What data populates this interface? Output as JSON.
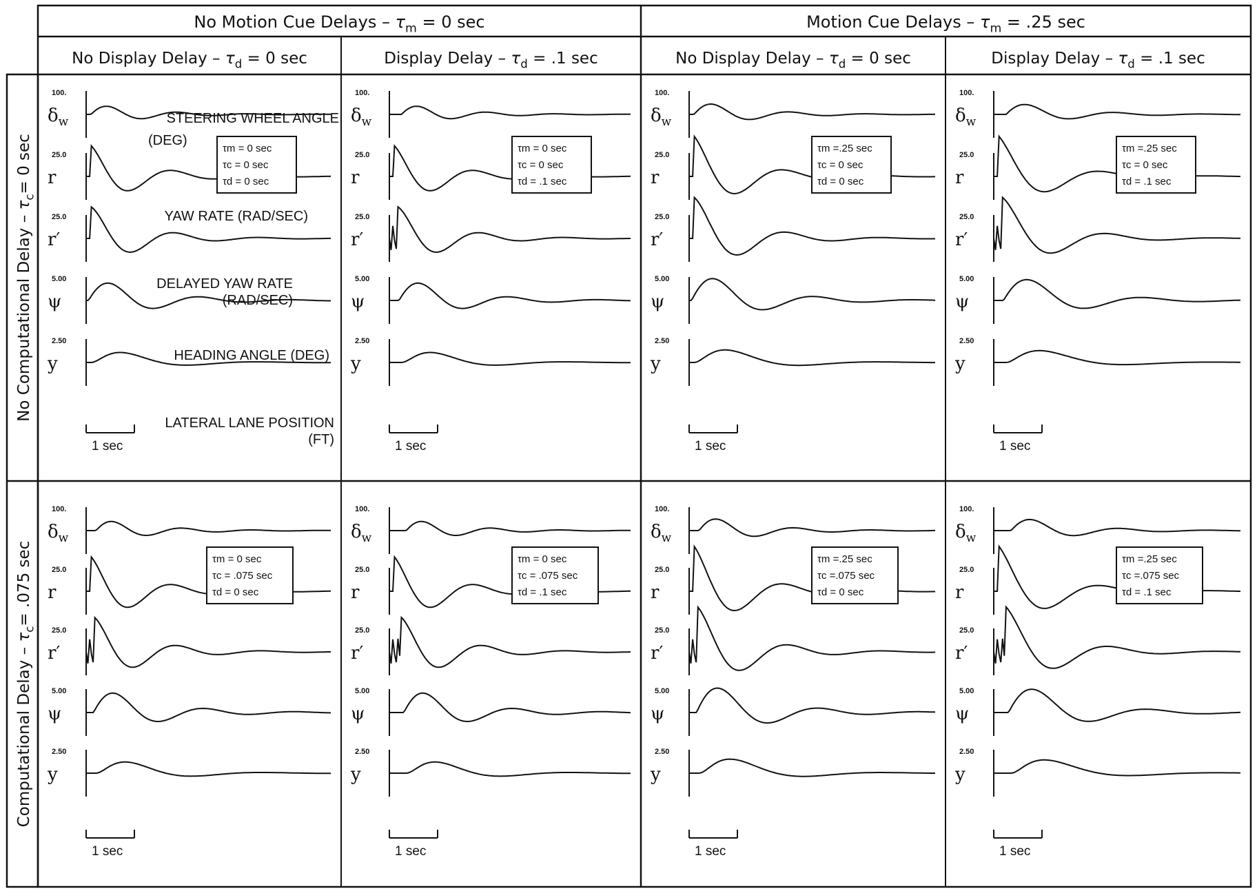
{
  "headers": {
    "col_groups": [
      {
        "text": "No Motion Cue Delays",
        "sym": "τ",
        "sub": "m",
        "rest": " = 0 sec"
      },
      {
        "text": "Motion  Cue Delays",
        "sym": "τ",
        "sub": "m",
        "rest": " = .25 sec"
      }
    ],
    "cols": [
      {
        "text": "No Display Delay",
        "sym": "τ",
        "sub": "d",
        "rest": " = 0 sec"
      },
      {
        "text": "Display Delay",
        "sym": "τ",
        "sub": "d",
        "rest": " = .1 sec"
      },
      {
        "text": "No Display Delay",
        "sym": "τ",
        "sub": "d",
        "rest": " = 0 sec"
      },
      {
        "text": "Display Delay",
        "sym": "τ",
        "sub": "d",
        "rest": " = .1 sec"
      }
    ],
    "rows": [
      {
        "text": "No Computational Delay",
        "sym": "τ",
        "sub": "c",
        "rest": "= 0 sec"
      },
      {
        "text": "Computational Delay",
        "sym": "τ",
        "sub": "c",
        "rest": "= .075 sec"
      }
    ]
  },
  "trace_symbols": [
    "δ",
    "r",
    "r′",
    "ψ",
    "y"
  ],
  "trace_symbol_subs": [
    "w",
    "",
    "",
    "",
    ""
  ],
  "scale_labels": [
    "100.",
    "25.0",
    "25.0",
    "5.00",
    "2.50"
  ],
  "trace_names": [
    [
      "STEERING WHEEL ANGLE",
      "(DEG)"
    ],
    [
      "YAW RATE (RAD/SEC)"
    ],
    [
      "DELAYED YAW RATE",
      "(RAD/SEC)"
    ],
    [
      "HEADING ANGLE (DEG)"
    ],
    [
      "LATERAL LANE POSITION",
      "(FT)"
    ]
  ],
  "time_scale_label": "1 sec",
  "chart_data": {
    "type": "line",
    "layout": "2x4 grid of time-history panels, 5 stacked traces each",
    "traces": [
      "δw",
      "r",
      "r′",
      "ψ",
      "y"
    ],
    "scales": {
      "δw": "100.",
      "r": "25.0",
      "r′": "25.0",
      "ψ": "5.00",
      "y": "2.50"
    },
    "x_unit": "sec",
    "panels": [
      {
        "row": 0,
        "col": 0,
        "legend": [
          "τm = 0 sec",
          "τc = 0 sec",
          "τd = 0 sec"
        ]
      },
      {
        "row": 0,
        "col": 1,
        "legend": [
          "τm = 0 sec",
          "τc = 0 sec",
          "τd = .1 sec"
        ]
      },
      {
        "row": 0,
        "col": 2,
        "legend": [
          "τm =.25 sec",
          "τc = 0 sec",
          "τd = 0 sec"
        ]
      },
      {
        "row": 0,
        "col": 3,
        "legend": [
          "τm =.25 sec",
          "τc = 0 sec",
          "τd = .1 sec"
        ]
      },
      {
        "row": 1,
        "col": 0,
        "legend": [
          "τm = 0 sec",
          "τc = .075 sec",
          "τd = 0 sec"
        ]
      },
      {
        "row": 1,
        "col": 1,
        "legend": [
          "τm = 0 sec",
          "τc = .075 sec",
          "τd = .1 sec"
        ]
      },
      {
        "row": 1,
        "col": 2,
        "legend": [
          "τm =.25 sec",
          "τc =.075 sec",
          "τd = 0 sec"
        ]
      },
      {
        "row": 1,
        "col": 3,
        "legend": [
          "τm =.25 sec",
          "τc =.075 sec",
          "τd = .1 sec"
        ]
      }
    ]
  }
}
